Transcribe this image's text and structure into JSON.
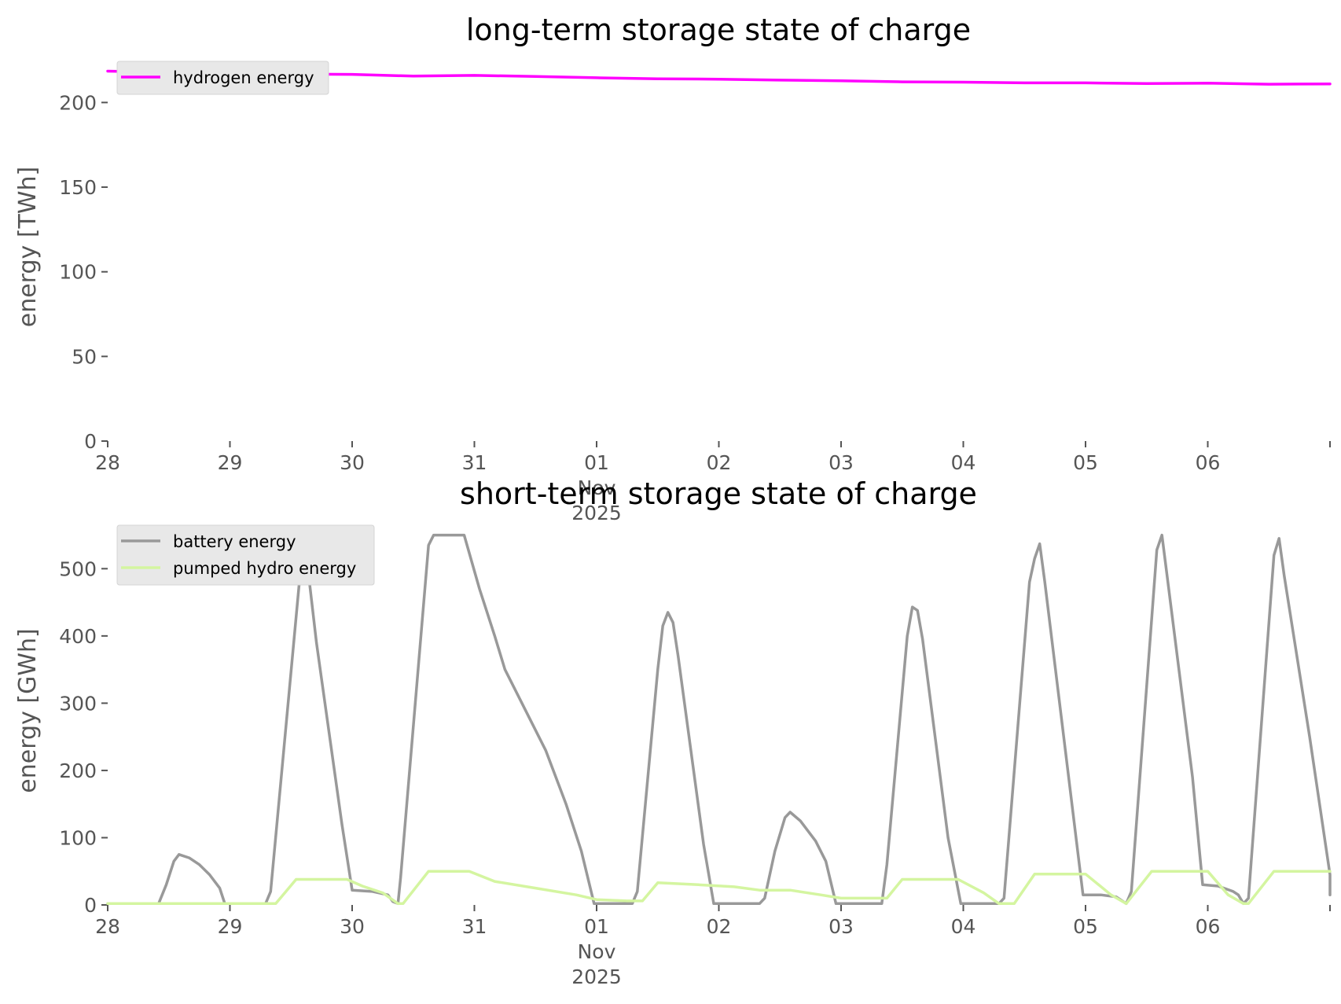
{
  "x_ticks": [
    {
      "label": "28",
      "label2": "",
      "label3": ""
    },
    {
      "label": "29",
      "label2": "",
      "label3": ""
    },
    {
      "label": "30",
      "label2": "",
      "label3": ""
    },
    {
      "label": "31",
      "label2": "",
      "label3": ""
    },
    {
      "label": "01",
      "label2": "Nov",
      "label3": "2025"
    },
    {
      "label": "02",
      "label2": "",
      "label3": ""
    },
    {
      "label": "03",
      "label2": "",
      "label3": ""
    },
    {
      "label": "04",
      "label2": "",
      "label3": ""
    },
    {
      "label": "05",
      "label2": "",
      "label3": ""
    },
    {
      "label": "06",
      "label2": "",
      "label3": ""
    }
  ],
  "chart_data": [
    {
      "type": "line",
      "title": "long-term storage state of charge",
      "xlabel": "",
      "ylabel": "energy [TWh]",
      "x_unit": "days (2025-10-28 to 2025-11-07)",
      "xlim": [
        "2025-10-28",
        "2025-11-07"
      ],
      "ylim": [
        0,
        222
      ],
      "y_ticks": [
        0,
        50,
        100,
        150,
        200
      ],
      "grid": false,
      "legend": "top-left",
      "series": [
        {
          "name": "hydrogen energy",
          "color": "#ff00ff",
          "points": [
            [
              "2025-10-28",
              218.5
            ],
            [
              "2025-10-28T12:00",
              217.8
            ],
            [
              "2025-10-29",
              217.2
            ],
            [
              "2025-10-29T12:00",
              216.8
            ],
            [
              "2025-10-30",
              216.6
            ],
            [
              "2025-10-30T12:00",
              215.6
            ],
            [
              "2025-10-31",
              216.0
            ],
            [
              "2025-10-31T12:00",
              215.4
            ],
            [
              "2025-11-01",
              214.6
            ],
            [
              "2025-11-01T12:00",
              214.0
            ],
            [
              "2025-11-02",
              213.8
            ],
            [
              "2025-11-02T12:00",
              213.2
            ],
            [
              "2025-11-03",
              212.8
            ],
            [
              "2025-11-03T12:00",
              212.2
            ],
            [
              "2025-11-04",
              212.0
            ],
            [
              "2025-11-04T12:00",
              211.6
            ],
            [
              "2025-11-05",
              211.6
            ],
            [
              "2025-11-05T12:00",
              211.2
            ],
            [
              "2025-11-06",
              211.4
            ],
            [
              "2025-11-06T12:00",
              210.8
            ],
            [
              "2025-11-07",
              211.0
            ]
          ]
        }
      ]
    },
    {
      "type": "line",
      "title": "short-term storage state of charge",
      "xlabel": "",
      "ylabel": "energy [GWh]",
      "x_unit": "days (2025-10-28 to 2025-11-07)",
      "xlim": [
        "2025-10-28",
        "2025-11-07"
      ],
      "ylim": [
        0,
        560
      ],
      "y_ticks": [
        0,
        100,
        200,
        300,
        400,
        500
      ],
      "grid": false,
      "legend": "top-left",
      "series": [
        {
          "name": "battery energy",
          "color": "#999999",
          "points": [
            [
              "2025-10-28",
              2
            ],
            [
              "2025-10-28T10:00",
              2
            ],
            [
              "2025-10-28T11:30",
              30
            ],
            [
              "2025-10-28T13:00",
              65
            ],
            [
              "2025-10-28T14:00",
              75
            ],
            [
              "2025-10-28T16:00",
              70
            ],
            [
              "2025-10-28T18:00",
              60
            ],
            [
              "2025-10-28T20:00",
              45
            ],
            [
              "2025-10-28T22:00",
              25
            ],
            [
              "2025-10-28T23:00",
              2
            ],
            [
              "2025-10-29T07:00",
              2
            ],
            [
              "2025-10-29T08:00",
              20
            ],
            [
              "2025-10-29T14:00",
              510
            ],
            [
              "2025-10-29T15:00",
              520
            ],
            [
              "2025-10-29T17:00",
              390
            ],
            [
              "2025-10-29T22:00",
              120
            ],
            [
              "2025-10-30T00:00",
              22
            ],
            [
              "2025-10-30T04:00",
              20
            ],
            [
              "2025-10-30T07:00",
              15
            ],
            [
              "2025-10-30T08:00",
              5
            ],
            [
              "2025-10-30T09:00",
              2
            ],
            [
              "2025-10-30T09:30",
              40
            ],
            [
              "2025-10-30T15:00",
              535
            ],
            [
              "2025-10-30T16:00",
              550
            ],
            [
              "2025-10-30T22:00",
              550
            ],
            [
              "2025-10-31T01:00",
              470
            ],
            [
              "2025-10-31T04:00",
              400
            ],
            [
              "2025-10-31T06:00",
              350
            ],
            [
              "2025-10-31T10:00",
              290
            ],
            [
              "2025-10-31T14:00",
              230
            ],
            [
              "2025-10-31T18:00",
              150
            ],
            [
              "2025-10-31T21:00",
              80
            ],
            [
              "2025-10-31T23:30",
              2
            ],
            [
              "2025-11-01T07:00",
              2
            ],
            [
              "2025-11-01T08:00",
              20
            ],
            [
              "2025-11-01T12:00",
              350
            ],
            [
              "2025-11-01T13:00",
              415
            ],
            [
              "2025-11-01T14:00",
              435
            ],
            [
              "2025-11-01T15:00",
              420
            ],
            [
              "2025-11-01T16:00",
              370
            ],
            [
              "2025-11-01T21:00",
              90
            ],
            [
              "2025-11-01T23:00",
              2
            ],
            [
              "2025-11-02T08:00",
              2
            ],
            [
              "2025-11-02T09:00",
              10
            ],
            [
              "2025-11-02T11:00",
              80
            ],
            [
              "2025-11-02T13:00",
              130
            ],
            [
              "2025-11-02T14:00",
              138
            ],
            [
              "2025-11-02T16:00",
              125
            ],
            [
              "2025-11-02T19:00",
              95
            ],
            [
              "2025-11-02T21:00",
              65
            ],
            [
              "2025-11-02T23:00",
              2
            ],
            [
              "2025-11-03T08:00",
              2
            ],
            [
              "2025-11-03T09:00",
              60
            ],
            [
              "2025-11-03T13:00",
              400
            ],
            [
              "2025-11-03T14:00",
              443
            ],
            [
              "2025-11-03T15:00",
              438
            ],
            [
              "2025-11-03T16:00",
              395
            ],
            [
              "2025-11-03T21:00",
              100
            ],
            [
              "2025-11-03T23:30",
              2
            ],
            [
              "2025-11-04T07:00",
              2
            ],
            [
              "2025-11-04T08:00",
              10
            ],
            [
              "2025-11-04T13:00",
              480
            ],
            [
              "2025-11-04T14:00",
              515
            ],
            [
              "2025-11-04T15:00",
              537
            ],
            [
              "2025-11-04T16:00",
              480
            ],
            [
              "2025-11-04T21:00",
              170
            ],
            [
              "2025-11-04T23:30",
              15
            ],
            [
              "2025-11-05T03:00",
              15
            ],
            [
              "2025-11-05T06:00",
              12
            ],
            [
              "2025-11-05T08:00",
              2
            ],
            [
              "2025-11-05T09:00",
              20
            ],
            [
              "2025-11-05T14:00",
              528
            ],
            [
              "2025-11-05T15:00",
              550
            ],
            [
              "2025-11-05T16:00",
              490
            ],
            [
              "2025-11-05T21:00",
              190
            ],
            [
              "2025-11-05T23:00",
              30
            ],
            [
              "2025-11-06T02:00",
              28
            ],
            [
              "2025-11-06T05:00",
              20
            ],
            [
              "2025-11-06T06:00",
              15
            ],
            [
              "2025-11-06T07:00",
              2
            ],
            [
              "2025-11-06T08:00",
              10
            ],
            [
              "2025-11-06T13:00",
              520
            ],
            [
              "2025-11-06T14:00",
              545
            ],
            [
              "2025-11-06T15:00",
              490
            ],
            [
              "2025-11-06T20:00",
              250
            ],
            [
              "2025-11-07T00:00",
              45
            ],
            [
              "2025-11-07T00:00",
              15
            ]
          ]
        },
        {
          "name": "pumped hydro energy",
          "color": "#d4f5a0",
          "points": [
            [
              "2025-10-28",
              2
            ],
            [
              "2025-10-29T09:00",
              2
            ],
            [
              "2025-10-29T13:00",
              38
            ],
            [
              "2025-10-29T23:00",
              38
            ],
            [
              "2025-10-30T02:00",
              28
            ],
            [
              "2025-10-30T06:00",
              18
            ],
            [
              "2025-10-30T09:00",
              2
            ],
            [
              "2025-10-30T10:00",
              2
            ],
            [
              "2025-10-30T15:00",
              50
            ],
            [
              "2025-10-30T23:00",
              50
            ],
            [
              "2025-10-31T04:00",
              35
            ],
            [
              "2025-10-31T12:00",
              25
            ],
            [
              "2025-10-31T20:00",
              15
            ],
            [
              "2025-11-01T00:00",
              8
            ],
            [
              "2025-11-01T06:00",
              6
            ],
            [
              "2025-11-01T09:00",
              6
            ],
            [
              "2025-11-01T12:00",
              33
            ],
            [
              "2025-11-01T20:00",
              30
            ],
            [
              "2025-11-02T03:00",
              27
            ],
            [
              "2025-11-02T08:00",
              22
            ],
            [
              "2025-11-02T14:00",
              22
            ],
            [
              "2025-11-02T20:00",
              15
            ],
            [
              "2025-11-03T00:00",
              10
            ],
            [
              "2025-11-03T09:00",
              10
            ],
            [
              "2025-11-03T12:00",
              38
            ],
            [
              "2025-11-03T23:00",
              38
            ],
            [
              "2025-11-04T04:00",
              18
            ],
            [
              "2025-11-04T07:00",
              2
            ],
            [
              "2025-11-04T10:00",
              2
            ],
            [
              "2025-11-04T14:00",
              46
            ],
            [
              "2025-11-05T00:00",
              46
            ],
            [
              "2025-11-05T05:00",
              15
            ],
            [
              "2025-11-05T08:00",
              2
            ],
            [
              "2025-11-05T13:00",
              50
            ],
            [
              "2025-11-06T00:00",
              50
            ],
            [
              "2025-11-06T04:00",
              15
            ],
            [
              "2025-11-06T07:00",
              2
            ],
            [
              "2025-11-06T08:00",
              2
            ],
            [
              "2025-11-06T13:00",
              50
            ],
            [
              "2025-11-07T00:00",
              50
            ]
          ]
        }
      ]
    }
  ]
}
